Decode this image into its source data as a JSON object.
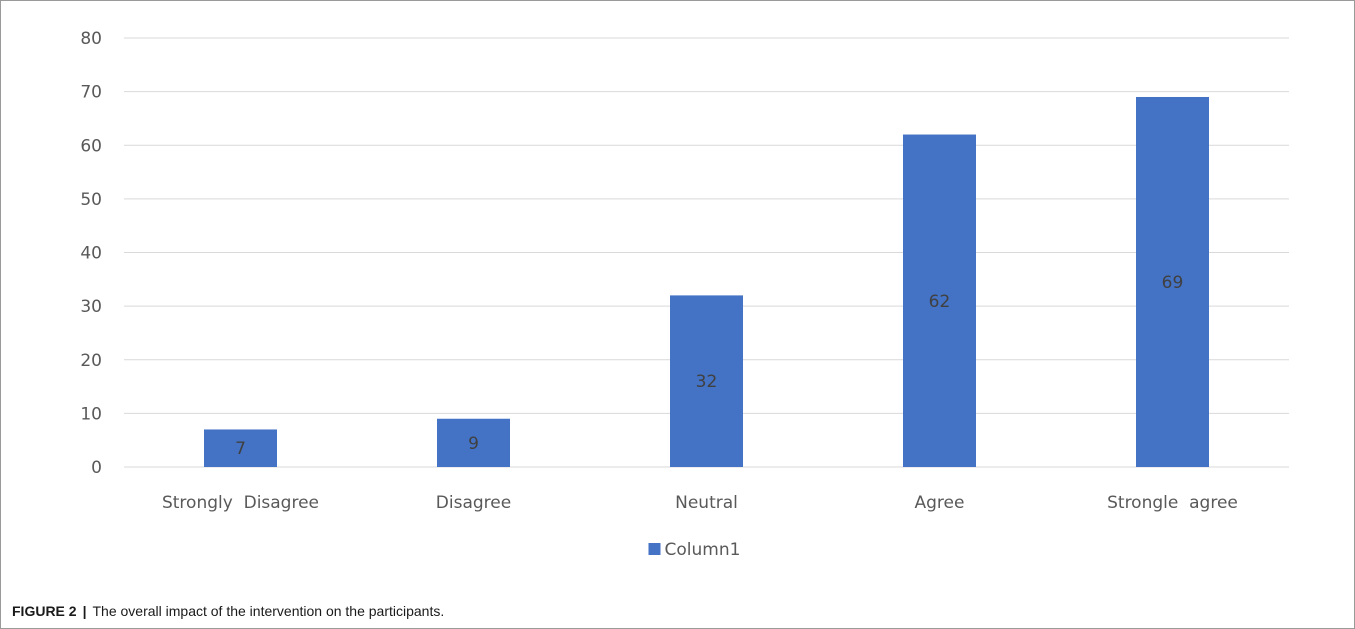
{
  "chart_data": {
    "type": "bar",
    "categories": [
      "Strongly  Disagree",
      "Disagree",
      "Neutral",
      "Agree",
      "Strongle  agree"
    ],
    "series": [
      {
        "name": "Column1",
        "values": [
          7,
          9,
          32,
          62,
          69
        ],
        "color": "#4472c4"
      }
    ],
    "ylim": [
      0,
      80
    ],
    "yticks": [
      0,
      10,
      20,
      30,
      40,
      50,
      60,
      70,
      80
    ],
    "data_labels": [
      "7",
      "9",
      "32",
      "62",
      "69"
    ],
    "grid": true,
    "legend": "bottom-center",
    "title": "",
    "xlabel": "",
    "ylabel": ""
  },
  "caption": {
    "figure_label": "FIGURE 2",
    "separator": "|",
    "text": "The overall impact of the intervention on the participants."
  },
  "colors": {
    "bar": "#4472c4",
    "grid": "#d9d9d9",
    "axis_text": "#595959",
    "label_text": "#404040"
  }
}
